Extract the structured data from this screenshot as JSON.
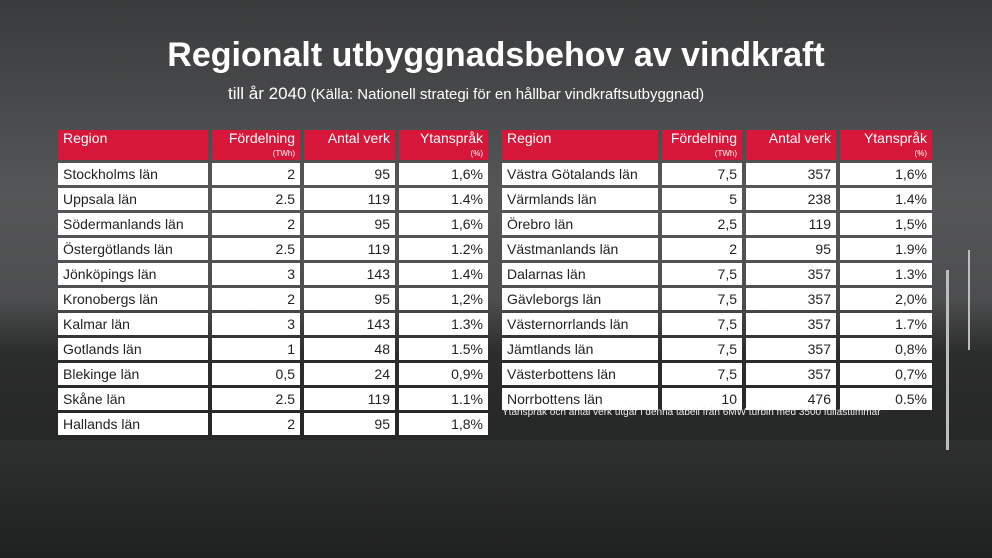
{
  "title": "Regionalt utbyggnadsbehov av vindkraft",
  "subtitle_main": "till år 2040",
  "subtitle_source": "(Källa: Nationell strategi för en hållbar vindkraftsutbyggnad)",
  "headers": {
    "region": "Region",
    "fordelning": "Fördelning",
    "fordelning_unit": "(TWh)",
    "antal": "Antal verk",
    "ytansprak": "Ytanspråk",
    "ytansprak_unit": "(%)"
  },
  "left_rows": [
    [
      "Stockholms län",
      "2",
      "95",
      "1,6%"
    ],
    [
      "Uppsala län",
      "2.5",
      "119",
      "1.4%"
    ],
    [
      "Södermanlands län",
      "2",
      "95",
      "1,6%"
    ],
    [
      "Östergötlands län",
      "2.5",
      "119",
      "1.2%"
    ],
    [
      "Jönköpings län",
      "3",
      "143",
      "1.4%"
    ],
    [
      "Kronobergs län",
      "2",
      "95",
      "1,2%"
    ],
    [
      "Kalmar län",
      "3",
      "143",
      "1.3%"
    ],
    [
      "Gotlands län",
      "1",
      "48",
      "1.5%"
    ],
    [
      "Blekinge län",
      "0,5",
      "24",
      "0,9%"
    ],
    [
      "Skåne län",
      "2.5",
      "119",
      "1.1%"
    ],
    [
      "Hallands län",
      "2",
      "95",
      "1,8%"
    ]
  ],
  "right_rows": [
    [
      "Västra Götalands län",
      "7,5",
      "357",
      "1,6%"
    ],
    [
      "Värmlands län",
      "5",
      "238",
      "1.4%"
    ],
    [
      "Örebro län",
      "2,5",
      "119",
      "1,5%"
    ],
    [
      "Västmanlands län",
      "2",
      "95",
      "1.9%"
    ],
    [
      "Dalarnas län",
      "7,5",
      "357",
      "1.3%"
    ],
    [
      "Gävleborgs län",
      "7,5",
      "357",
      "2,0%"
    ],
    [
      "Västernorrlands län",
      "7,5",
      "357",
      "1.7%"
    ],
    [
      "Jämtlands län",
      "7,5",
      "357",
      "0,8%"
    ],
    [
      "Västerbottens län",
      "7,5",
      "357",
      "0,7%"
    ],
    [
      "Norrbottens län",
      "10",
      "476",
      "0.5%"
    ]
  ],
  "note": "Ytanspråk och antal verk utgår i denna tabell från 6MW turbin med 3500 fullasttimmar",
  "colors": {
    "header": "#d6173a"
  }
}
